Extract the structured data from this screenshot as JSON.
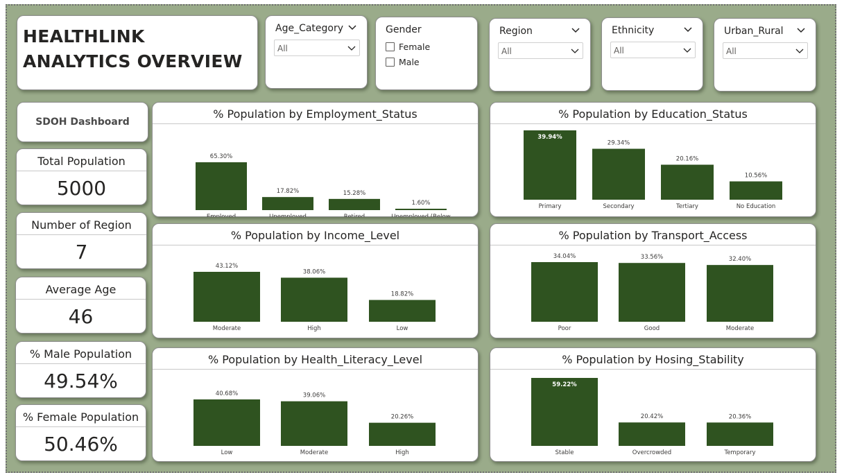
{
  "header": {
    "title": "HEALTHLINK ANALYTICS OVERVIEW"
  },
  "slicers": {
    "age_category": {
      "title": "Age_Category",
      "value": "All"
    },
    "gender": {
      "title": "Gender",
      "options": [
        "Female",
        "Male"
      ]
    },
    "region": {
      "title": "Region",
      "value": "All"
    },
    "ethnicity": {
      "title": "Ethnicity",
      "value": "All"
    },
    "urban_rural": {
      "title": "Urban_Rural",
      "value": "All"
    }
  },
  "kpis": {
    "sdoh_label": "SDOH Dashboard",
    "total_population": {
      "label": "Total Population",
      "value": "5000"
    },
    "number_of_region": {
      "label": "Number of Region",
      "value": "7"
    },
    "average_age": {
      "label": "Average Age",
      "value": "46"
    },
    "male_population": {
      "label": "% Male Population",
      "value": "49.54%"
    },
    "female_population": {
      "label": "% Female Population",
      "value": "50.46%"
    }
  },
  "colors": {
    "bar": "#2f5320",
    "background": "#9aab8a",
    "card": "#ffffff"
  },
  "chart_data": [
    {
      "id": "employment",
      "type": "bar",
      "title": "% Population by Employment_Status",
      "categories": [
        "Employed",
        "Unemployed",
        "Retired",
        "Unemployed (Below Working Age)"
      ],
      "values": [
        65.3,
        17.82,
        15.28,
        1.6
      ],
      "labels": [
        "65.30%",
        "17.82%",
        "15.28%",
        "1.60%"
      ]
    },
    {
      "id": "education",
      "type": "bar",
      "title": "% Population by Education_Status",
      "categories": [
        "Primary",
        "Secondary",
        "Tertiary",
        "No Education"
      ],
      "values": [
        39.94,
        29.34,
        20.16,
        10.56
      ],
      "labels": [
        "39.94%",
        "29.34%",
        "20.16%",
        "10.56%"
      ]
    },
    {
      "id": "income",
      "type": "bar",
      "title": "% Population by Income_Level",
      "categories": [
        "Moderate",
        "High",
        "Low"
      ],
      "values": [
        43.12,
        38.06,
        18.82
      ],
      "labels": [
        "43.12%",
        "38.06%",
        "18.82%"
      ]
    },
    {
      "id": "transport",
      "type": "bar",
      "title": "% Population by Transport_Access",
      "categories": [
        "Poor",
        "Good",
        "Moderate"
      ],
      "values": [
        34.04,
        33.56,
        32.4
      ],
      "labels": [
        "34.04%",
        "33.56%",
        "32.40%"
      ]
    },
    {
      "id": "health_literacy",
      "type": "bar",
      "title": "% Population by Health_Literacy_Level",
      "categories": [
        "Low",
        "Moderate",
        "High"
      ],
      "values": [
        40.68,
        39.06,
        20.26
      ],
      "labels": [
        "40.68%",
        "39.06%",
        "20.26%"
      ]
    },
    {
      "id": "housing",
      "type": "bar",
      "title": "% Population by Hosing_Stability",
      "categories": [
        "Stable",
        "Overcrowded",
        "Temporary"
      ],
      "values": [
        59.22,
        20.42,
        20.36
      ],
      "labels": [
        "59.22%",
        "20.42%",
        "20.36%"
      ]
    }
  ]
}
